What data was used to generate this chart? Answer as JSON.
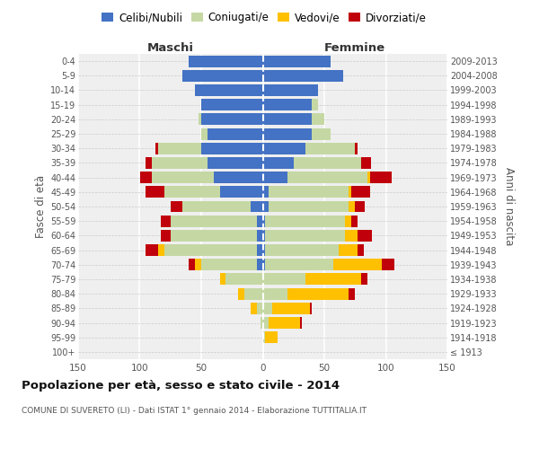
{
  "age_groups": [
    "100+",
    "95-99",
    "90-94",
    "85-89",
    "80-84",
    "75-79",
    "70-74",
    "65-69",
    "60-64",
    "55-59",
    "50-54",
    "45-49",
    "40-44",
    "35-39",
    "30-34",
    "25-29",
    "20-24",
    "15-19",
    "10-14",
    "5-9",
    "0-4"
  ],
  "birth_years": [
    "≤ 1913",
    "1914-1918",
    "1919-1923",
    "1924-1928",
    "1929-1933",
    "1934-1938",
    "1939-1943",
    "1944-1948",
    "1949-1953",
    "1954-1958",
    "1959-1963",
    "1964-1968",
    "1969-1973",
    "1974-1978",
    "1979-1983",
    "1984-1988",
    "1989-1993",
    "1994-1998",
    "1999-2003",
    "2004-2008",
    "2009-2013"
  ],
  "maschi_celibi": [
    0,
    0,
    0,
    0,
    0,
    0,
    5,
    5,
    5,
    5,
    10,
    35,
    40,
    45,
    50,
    45,
    50,
    50,
    55,
    65,
    60
  ],
  "maschi_coniugati": [
    0,
    0,
    2,
    5,
    15,
    30,
    45,
    75,
    70,
    70,
    55,
    45,
    50,
    45,
    35,
    5,
    2,
    0,
    0,
    0,
    0
  ],
  "maschi_vedovi": [
    0,
    0,
    0,
    5,
    5,
    5,
    5,
    5,
    0,
    0,
    0,
    0,
    0,
    0,
    0,
    0,
    0,
    0,
    0,
    0,
    0
  ],
  "maschi_divorziati": [
    0,
    0,
    0,
    0,
    0,
    0,
    5,
    10,
    8,
    8,
    10,
    15,
    10,
    5,
    2,
    0,
    0,
    0,
    0,
    0,
    0
  ],
  "femmine_nubili": [
    0,
    0,
    0,
    0,
    0,
    0,
    2,
    2,
    2,
    2,
    5,
    5,
    20,
    25,
    35,
    40,
    40,
    40,
    45,
    65,
    55
  ],
  "femmine_coniugate": [
    0,
    2,
    5,
    8,
    20,
    35,
    55,
    60,
    65,
    65,
    65,
    65,
    65,
    55,
    40,
    15,
    10,
    5,
    0,
    0,
    0
  ],
  "femmine_vedove": [
    0,
    10,
    25,
    30,
    50,
    45,
    40,
    15,
    10,
    5,
    5,
    2,
    2,
    0,
    0,
    0,
    0,
    0,
    0,
    0,
    0
  ],
  "femmine_divorziate": [
    0,
    0,
    2,
    2,
    5,
    5,
    10,
    5,
    12,
    5,
    8,
    15,
    18,
    8,
    2,
    0,
    0,
    0,
    0,
    0,
    0
  ],
  "colors": {
    "celibe": "#4472c4",
    "coniugato": "#c5d8a4",
    "vedovo": "#ffc000",
    "divorziato": "#c0000b"
  },
  "xlim": 150,
  "title": "Popolazione per età, sesso e stato civile - 2014",
  "subtitle": "COMUNE DI SUVERETO (LI) - Dati ISTAT 1° gennaio 2014 - Elaborazione TUTTITALIA.IT",
  "ylabel_left": "Fasce di età",
  "ylabel_right": "Anni di nascita",
  "xlabel_left": "Maschi",
  "xlabel_right": "Femmine",
  "legend_labels": [
    "Celibi/Nubili",
    "Coniugati/e",
    "Vedovi/e",
    "Divorziati/e"
  ]
}
